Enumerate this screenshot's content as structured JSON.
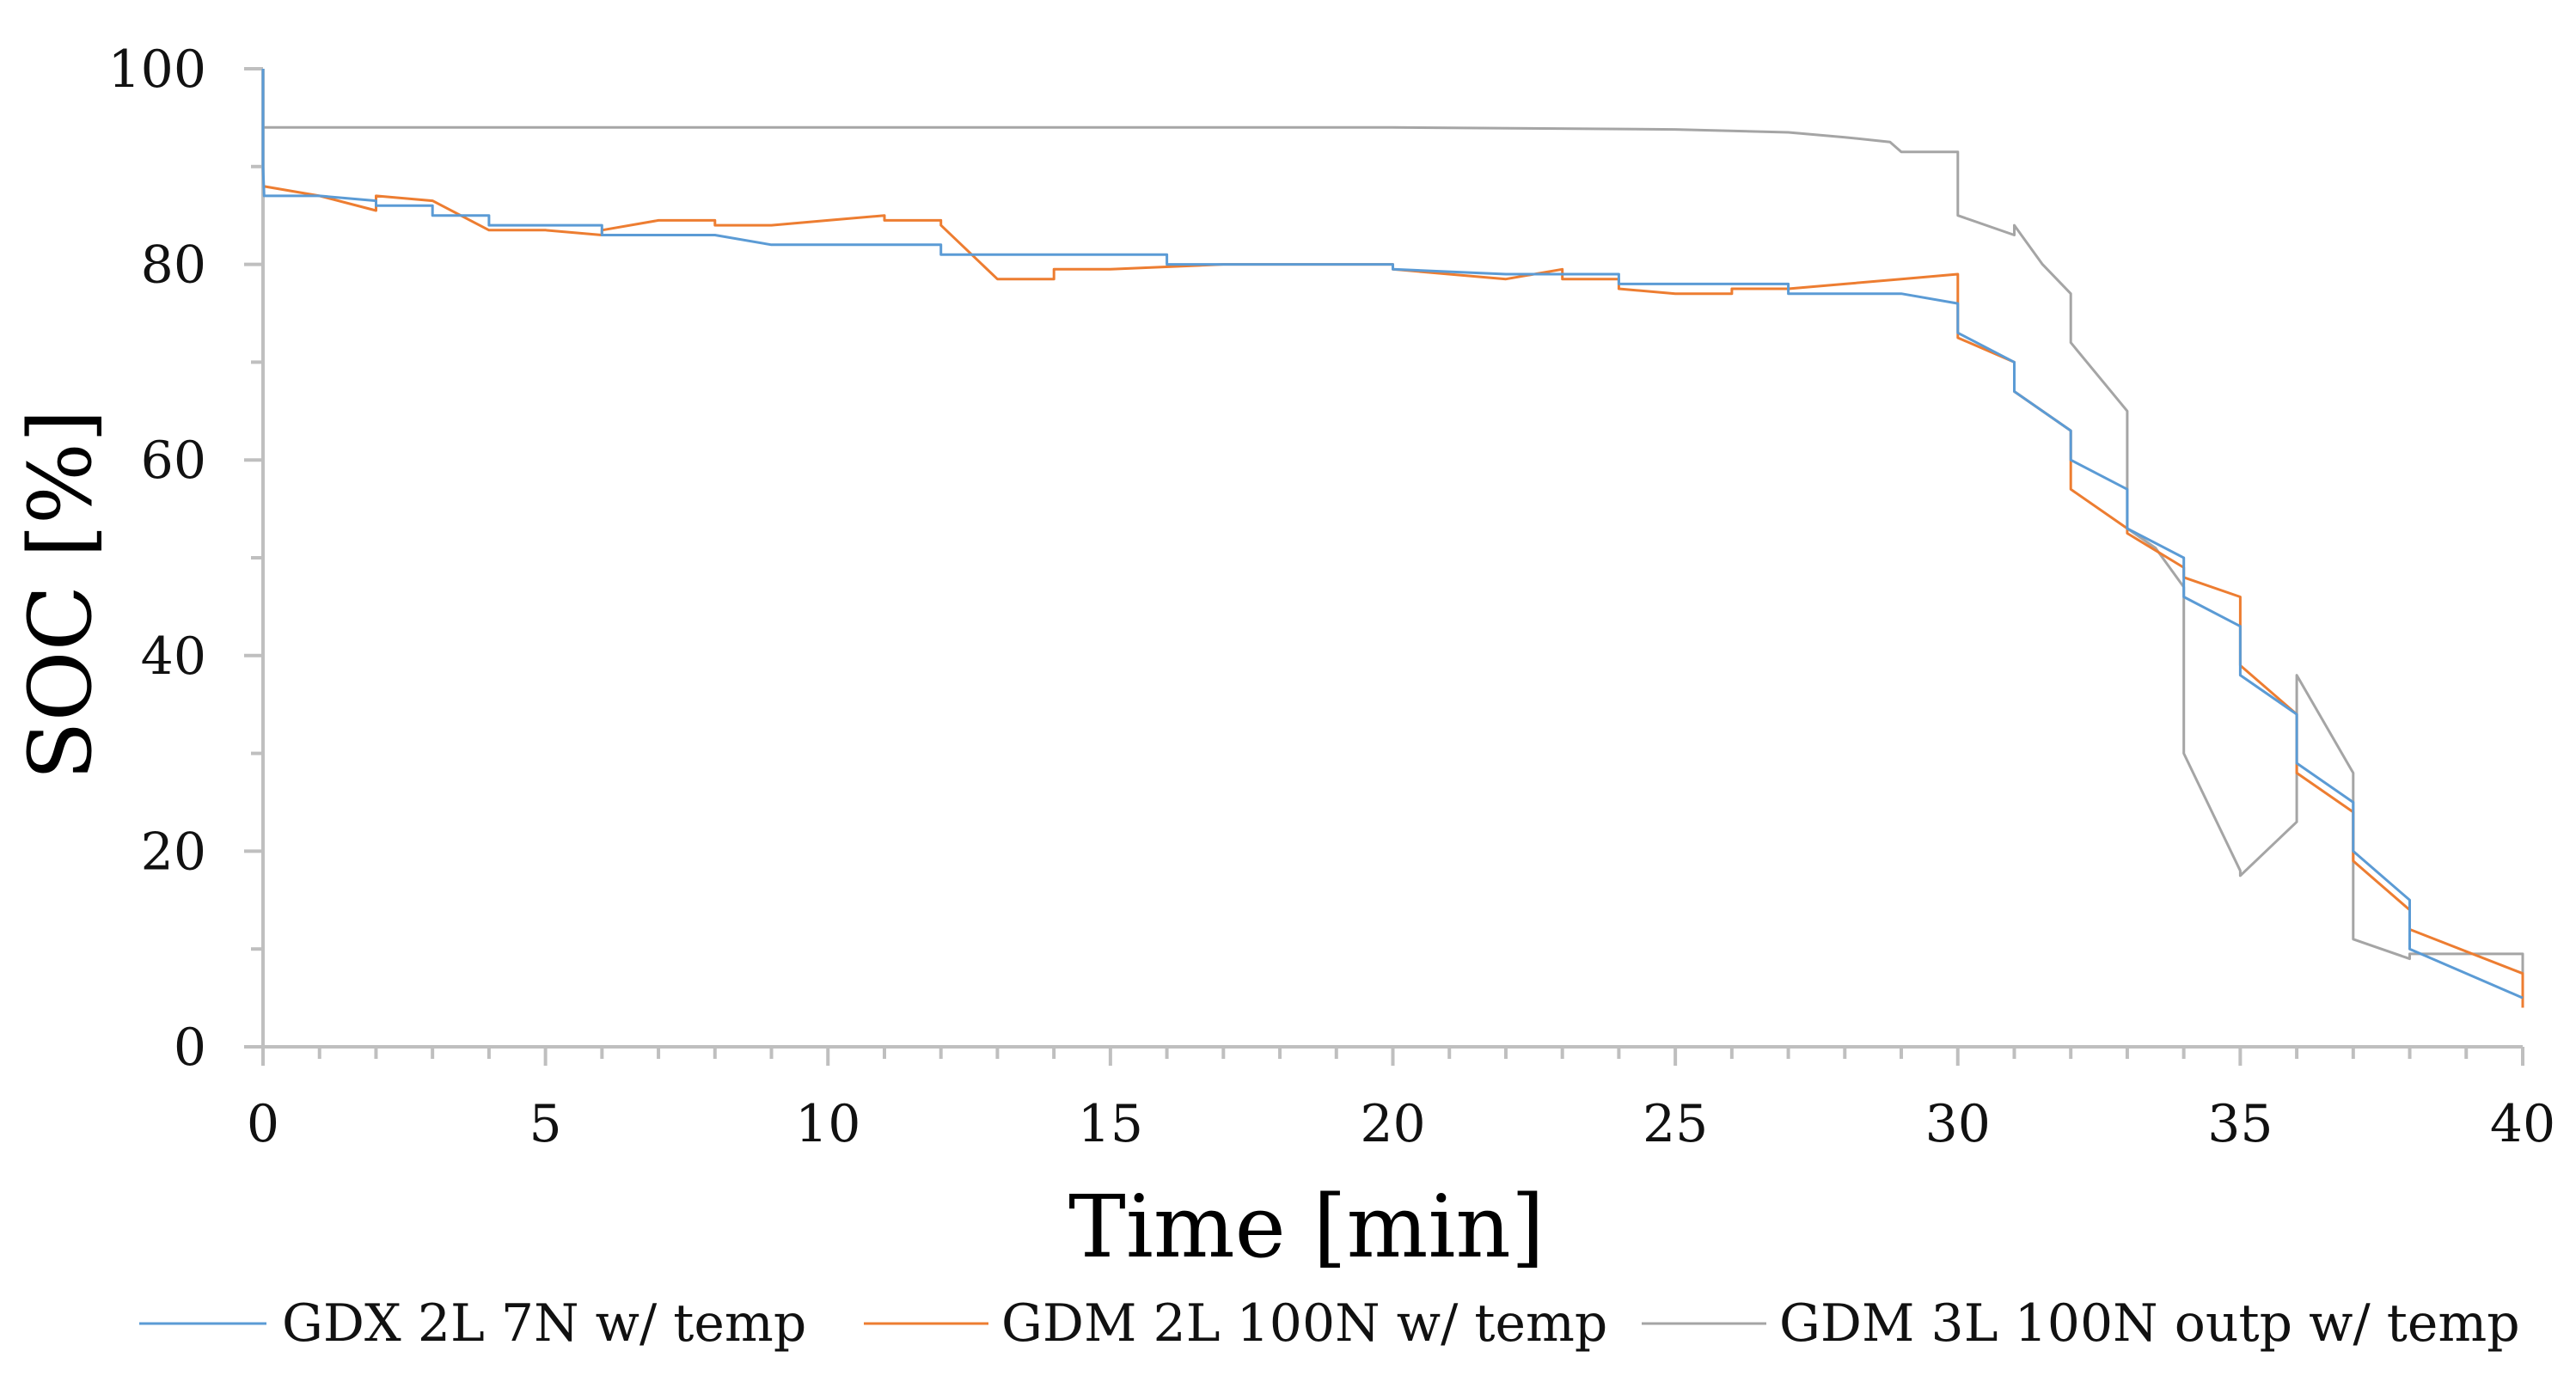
{
  "chart_data": {
    "type": "line",
    "title": "",
    "xlabel": "Time [min]",
    "ylabel": "SOC [%]",
    "xlim": [
      0,
      40
    ],
    "ylim": [
      0,
      100
    ],
    "xticks": [
      0,
      5,
      10,
      15,
      20,
      25,
      30,
      35,
      40
    ],
    "xtick_labels": [
      "0",
      "5",
      "10",
      "15",
      "20",
      "25",
      "30",
      "35",
      "40"
    ],
    "yticks": [
      0,
      20,
      40,
      60,
      80,
      100
    ],
    "ytick_labels": [
      "0",
      "20",
      "40",
      "60",
      "80",
      "100"
    ],
    "grid": false,
    "legend_position": "bottom",
    "series": [
      {
        "name": "GDX 2L 7N w/ temp",
        "color": "#5b9bd5",
        "x": [
          0,
          0,
          0.02,
          1,
          2,
          2,
          3,
          3,
          4,
          4,
          6,
          6,
          8,
          9,
          9,
          12,
          12,
          16,
          16,
          20,
          20,
          22,
          24,
          24,
          27,
          27,
          29,
          30,
          30,
          31,
          31,
          32,
          32,
          33,
          33,
          34,
          34,
          35,
          35,
          36,
          36,
          37,
          37,
          38,
          38,
          40
        ],
        "y": [
          100,
          90,
          87,
          87,
          86.5,
          86,
          86,
          85,
          85,
          84,
          84,
          83,
          83,
          82,
          82,
          82,
          81,
          81,
          80,
          80,
          79.5,
          79,
          79,
          78,
          78,
          77,
          77,
          76,
          73,
          70,
          67,
          63,
          60,
          57,
          53,
          50,
          46,
          43,
          38,
          34,
          29,
          25,
          20,
          15,
          10,
          5
        ]
      },
      {
        "name": "GDM 2L 100N w/ temp",
        "color": "#ed7d31",
        "x": [
          0,
          1,
          2,
          2,
          3,
          4,
          5,
          6,
          6,
          7,
          8,
          8,
          9,
          10,
          11,
          11,
          12,
          12,
          13,
          14,
          14,
          15,
          17,
          19,
          20,
          20,
          22,
          23,
          23,
          24,
          24,
          25,
          26,
          26,
          27,
          28,
          29,
          30,
          30,
          31,
          31,
          32,
          32,
          33,
          33,
          34,
          34,
          35,
          35,
          36,
          36,
          37,
          37,
          38,
          38,
          40,
          40
        ],
        "y": [
          88,
          87,
          85.5,
          87,
          86.5,
          83.5,
          83.5,
          83,
          83.5,
          84.5,
          84.5,
          84,
          84,
          84.5,
          85,
          84.5,
          84.5,
          84,
          78.5,
          78.5,
          79.5,
          79.5,
          80,
          80,
          80,
          79.5,
          78.5,
          79.5,
          78.5,
          78.5,
          77.5,
          77,
          77,
          77.5,
          77.5,
          78,
          78.5,
          79,
          72.5,
          70,
          67,
          63,
          57,
          53,
          52.5,
          49,
          48,
          46,
          39,
          34,
          28,
          24,
          19,
          14,
          12,
          7.5,
          4
        ]
      },
      {
        "name": "GDM 3L 100N outp w/ temp",
        "color": "#a5a5a5",
        "x": [
          0,
          5,
          10,
          15,
          20,
          25,
          27,
          28,
          28.8,
          29,
          30,
          30,
          31,
          31,
          31.5,
          32,
          32,
          33,
          33,
          33.5,
          34,
          34,
          35,
          35,
          36,
          36,
          37,
          37,
          38,
          38,
          40,
          40
        ],
        "y": [
          94,
          94,
          94,
          94,
          94,
          93.8,
          93.5,
          93,
          92.5,
          91.5,
          91.5,
          85,
          83,
          84,
          80,
          77,
          72,
          65,
          53,
          51,
          47,
          30,
          18,
          17.5,
          23,
          38,
          28,
          11,
          9,
          9.5,
          9.5,
          5
        ]
      }
    ]
  }
}
